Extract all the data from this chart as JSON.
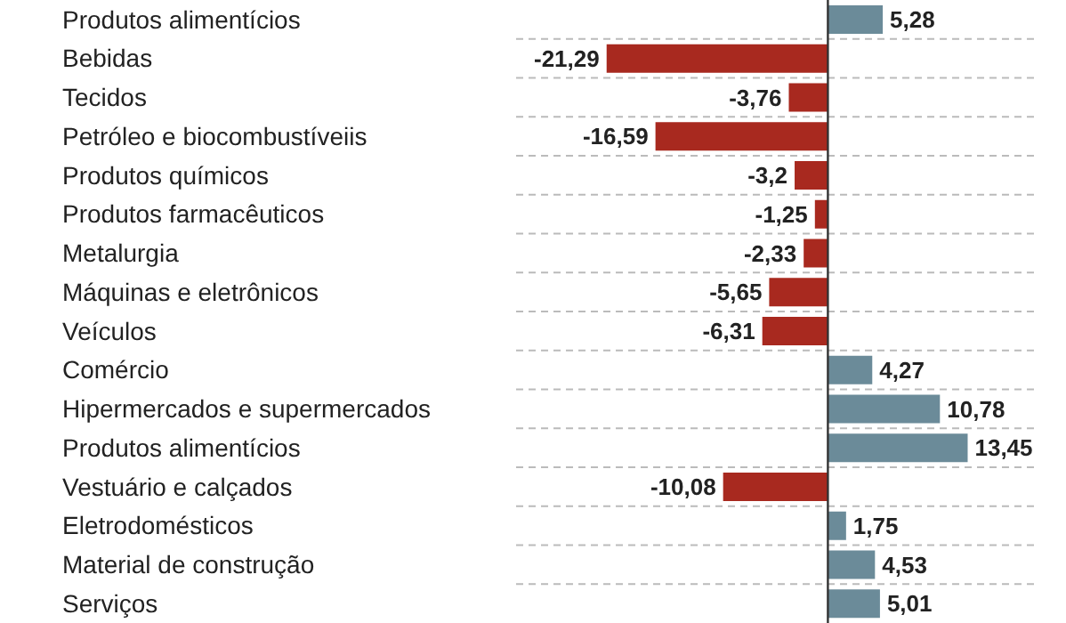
{
  "chart_data": {
    "type": "bar",
    "orientation": "horizontal",
    "categories": [
      "Produtos alimentícios",
      "Bebidas",
      "Tecidos",
      "Petróleo e biocombustíveiis",
      "Produtos químicos",
      "Produtos farmacêuticos",
      "Metalurgia",
      "Máquinas e eletrônicos",
      "Veículos",
      "Comércio",
      "Hipermercados e supermercados",
      "Produtos alimentícios",
      "Vestuário e calçados",
      "Eletrodomésticos",
      "Material de construção",
      "Serviços"
    ],
    "values": [
      5.28,
      -21.29,
      -3.76,
      -16.59,
      -3.2,
      -1.25,
      -2.33,
      -5.65,
      -6.31,
      4.27,
      10.78,
      13.45,
      -10.08,
      1.75,
      4.53,
      5.01
    ],
    "value_labels": [
      "5,28",
      "-21,29",
      "-3,76",
      "-16,59",
      "-3,2",
      "-1,25",
      "-2,33",
      "-5,65",
      "-6,31",
      "4,27",
      "10,78",
      "13,45",
      "-10,08",
      "1,75",
      "4,53",
      "5,01"
    ],
    "colors": [
      "#6b8b99",
      "#a8291f",
      "#a8291f",
      "#a8291f",
      "#a8291f",
      "#a8291f",
      "#a8291f",
      "#a8291f",
      "#a8291f",
      "#6b8b99",
      "#6b8b99",
      "#6b8b99",
      "#a8291f",
      "#6b8b99",
      "#6b8b99",
      "#6b8b99"
    ],
    "xlim": [
      -30,
      20
    ],
    "tick_labels": "y",
    "grid": "y"
  }
}
